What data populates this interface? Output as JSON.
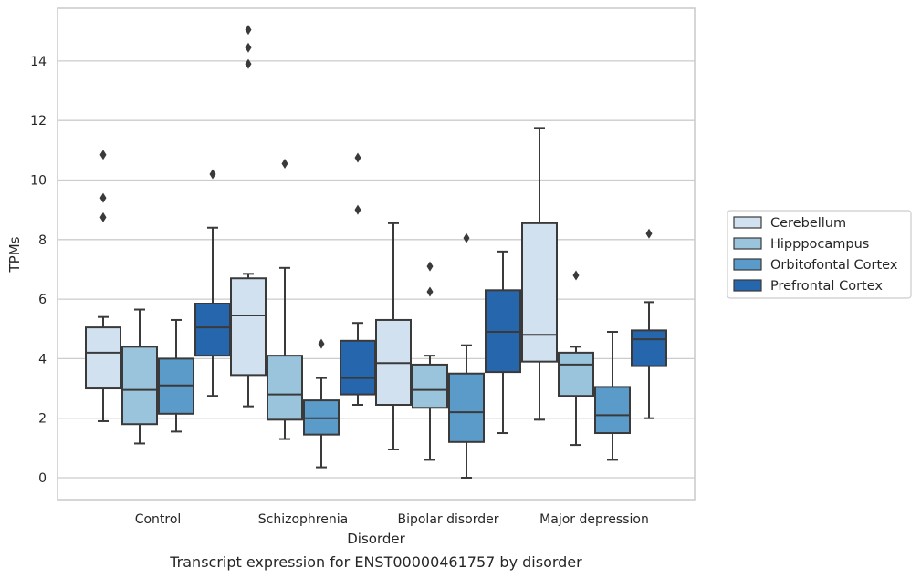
{
  "caption": "Transcript expression for ENST00000461757 by disorder",
  "chart_data": {
    "type": "box",
    "xlabel": "Disorder",
    "ylabel": "TPMs",
    "ylim": [
      -0.7,
      15.8
    ],
    "yticks": [
      "0",
      "2",
      "4",
      "6",
      "8",
      "10",
      "12",
      "14"
    ],
    "grid": "horizontal",
    "legend_position": "right",
    "categories": [
      "Control",
      "Schizophrenia",
      "Bipolar disorder",
      "Major depression"
    ],
    "series": [
      {
        "name": "Cerebellum",
        "color": "#d1e1f0",
        "boxes": [
          {
            "whisker_low": 1.9,
            "q1": 3.0,
            "median": 4.2,
            "q3": 5.05,
            "whisker_high": 5.4,
            "outliers": [
              8.75,
              9.4,
              10.85
            ]
          },
          {
            "whisker_low": 2.4,
            "q1": 3.45,
            "median": 5.45,
            "q3": 6.7,
            "whisker_high": 6.85,
            "outliers": [
              13.9,
              14.45,
              15.05
            ]
          },
          {
            "whisker_low": 0.95,
            "q1": 2.45,
            "median": 3.85,
            "q3": 5.3,
            "whisker_high": 8.55,
            "outliers": []
          },
          {
            "whisker_low": 1.95,
            "q1": 3.9,
            "median": 4.8,
            "q3": 8.55,
            "whisker_high": 11.75,
            "outliers": []
          }
        ]
      },
      {
        "name": "Hipppocampus",
        "color": "#9ac3dc",
        "boxes": [
          {
            "whisker_low": 1.15,
            "q1": 1.8,
            "median": 2.95,
            "q3": 4.4,
            "whisker_high": 5.65,
            "outliers": []
          },
          {
            "whisker_low": 1.3,
            "q1": 1.95,
            "median": 2.8,
            "q3": 4.1,
            "whisker_high": 7.05,
            "outliers": [
              10.55
            ]
          },
          {
            "whisker_low": 0.6,
            "q1": 2.35,
            "median": 2.95,
            "q3": 3.8,
            "whisker_high": 4.1,
            "outliers": [
              6.25,
              7.1
            ]
          },
          {
            "whisker_low": 1.1,
            "q1": 2.75,
            "median": 3.8,
            "q3": 4.2,
            "whisker_high": 4.4,
            "outliers": [
              6.8
            ]
          }
        ]
      },
      {
        "name": "Orbitofontal Cortex",
        "color": "#5a9bca",
        "boxes": [
          {
            "whisker_low": 1.55,
            "q1": 2.15,
            "median": 3.1,
            "q3": 4.0,
            "whisker_high": 5.3,
            "outliers": []
          },
          {
            "whisker_low": 0.35,
            "q1": 1.45,
            "median": 2.0,
            "q3": 2.6,
            "whisker_high": 3.35,
            "outliers": [
              4.5
            ]
          },
          {
            "whisker_low": 0.0,
            "q1": 1.2,
            "median": 2.2,
            "q3": 3.5,
            "whisker_high": 4.45,
            "outliers": [
              8.05
            ]
          },
          {
            "whisker_low": 0.6,
            "q1": 1.5,
            "median": 2.1,
            "q3": 3.05,
            "whisker_high": 4.9,
            "outliers": []
          }
        ]
      },
      {
        "name": "Prefrontal Cortex",
        "color": "#2666ad",
        "boxes": [
          {
            "whisker_low": 2.75,
            "q1": 4.1,
            "median": 5.05,
            "q3": 5.85,
            "whisker_high": 8.4,
            "outliers": [
              10.2
            ]
          },
          {
            "whisker_low": 2.45,
            "q1": 2.8,
            "median": 3.35,
            "q3": 4.6,
            "whisker_high": 5.2,
            "outliers": [
              9.0,
              10.75
            ]
          },
          {
            "whisker_low": 1.5,
            "q1": 3.55,
            "median": 4.9,
            "q3": 6.3,
            "whisker_high": 7.6,
            "outliers": []
          },
          {
            "whisker_low": 2.0,
            "q1": 3.75,
            "median": 4.65,
            "q3": 4.95,
            "whisker_high": 5.9,
            "outliers": [
              8.2
            ]
          }
        ]
      }
    ]
  }
}
